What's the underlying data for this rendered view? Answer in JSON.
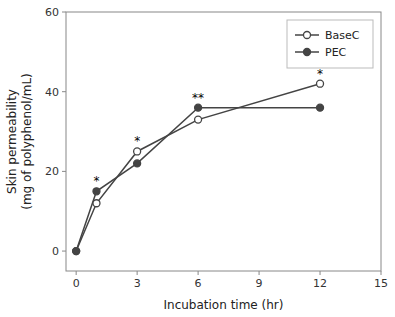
{
  "chart_data": {
    "type": "line",
    "x": [
      0,
      1,
      3,
      6,
      12
    ],
    "series": [
      {
        "name": "BaseC",
        "color": "#444444",
        "marker": "open-circle",
        "values": [
          0,
          12,
          25,
          33,
          42
        ]
      },
      {
        "name": "PEC",
        "color": "#444444",
        "marker": "circle",
        "values": [
          0,
          15,
          22,
          36,
          36
        ]
      }
    ],
    "x_label": "Incubation time (hr)",
    "y_label": "Skin permeability\n(mg of polyphenol/mL)",
    "xlim": [
      -0.5,
      15
    ],
    "ylim": [
      -5,
      60
    ],
    "xticks": [
      0,
      3,
      6,
      9,
      12,
      15
    ],
    "yticks": [
      0,
      20,
      40,
      60
    ],
    "annotations": [
      {
        "text": "*",
        "x": 1.0,
        "y": 16.5
      },
      {
        "text": "*",
        "x": 3.0,
        "y": 26.5
      },
      {
        "text": "**",
        "x": 6.0,
        "y": 37.5
      },
      {
        "text": "*",
        "x": 12.0,
        "y": 43.5
      }
    ],
    "grid": false,
    "legend": "upper right"
  }
}
